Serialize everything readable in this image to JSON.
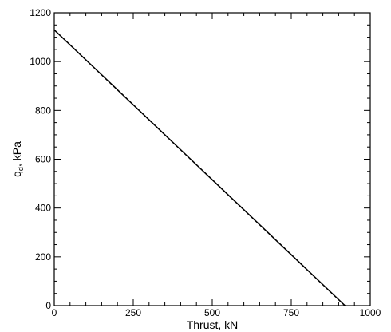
{
  "chart_data": {
    "type": "line",
    "title": "",
    "xlabel": "Thrust, kN",
    "ylabel_main": "q",
    "ylabel_sub": "d",
    "ylabel_rest": ", kPa",
    "xlim": [
      0,
      1000
    ],
    "ylim": [
      0,
      1200
    ],
    "x_major_ticks": [
      0,
      250,
      500,
      750,
      1000
    ],
    "x_tick_labels": [
      "0",
      "250",
      "500",
      "750",
      "1000"
    ],
    "y_major_ticks": [
      0,
      200,
      400,
      600,
      800,
      1000,
      1200
    ],
    "y_tick_labels": [
      "0",
      "200",
      "400",
      "600",
      "800",
      "1000",
      "1200"
    ],
    "x_minor_step": 50,
    "y_minor_step": 50,
    "grid": false,
    "legend": "none",
    "series": [
      {
        "x": [
          0,
          920
        ],
        "y": [
          1130,
          0
        ]
      }
    ],
    "line_color": "#000000"
  }
}
